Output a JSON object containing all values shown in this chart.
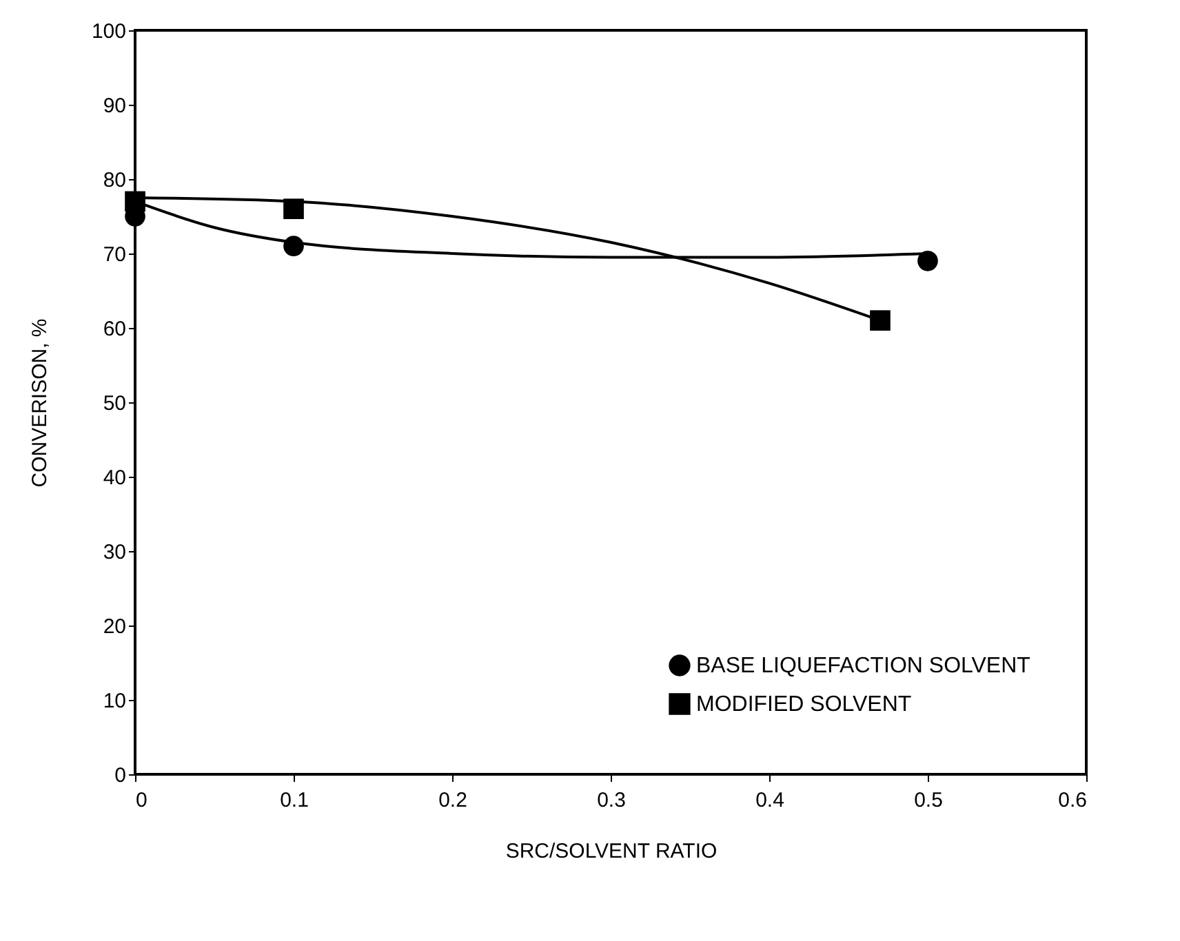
{
  "chart_data": {
    "type": "scatter",
    "xlabel": "SRC/SOLVENT RATIO",
    "ylabel": "CONVERISON, %",
    "xlim": [
      0,
      0.6
    ],
    "xticks": [
      0,
      0.1,
      0.2,
      0.3,
      0.4,
      0.5,
      0.6
    ],
    "ylim": [
      0,
      100
    ],
    "yticks": [
      0,
      10,
      20,
      30,
      40,
      50,
      60,
      70,
      80,
      90,
      100
    ],
    "grid": false,
    "legend": "bottom right",
    "series": [
      {
        "name": "BASE LIQUEFACTION SOLVENT",
        "marker": "circle",
        "color": "#000000",
        "x": [
          0,
          0.1,
          0.5
        ],
        "values": [
          75,
          71,
          69
        ]
      },
      {
        "name": "MODIFIED SOLVENT",
        "marker": "square",
        "color": "#000000",
        "x": [
          0,
          0.1,
          0.47
        ],
        "values": [
          77,
          76,
          61
        ]
      },
      {
        "type": "line",
        "marker": "none",
        "color": "#000000",
        "x": [
          0,
          0.05,
          0.1,
          0.2,
          0.3,
          0.4,
          0.5
        ],
        "values": [
          77,
          73.5,
          71.5,
          70,
          69.5,
          69.5,
          70
        ]
      },
      {
        "type": "line",
        "marker": "none",
        "color": "#000000",
        "x": [
          0,
          0.1,
          0.2,
          0.3,
          0.4,
          0.47
        ],
        "values": [
          77.5,
          77,
          75,
          71.5,
          66,
          61
        ]
      }
    ]
  }
}
